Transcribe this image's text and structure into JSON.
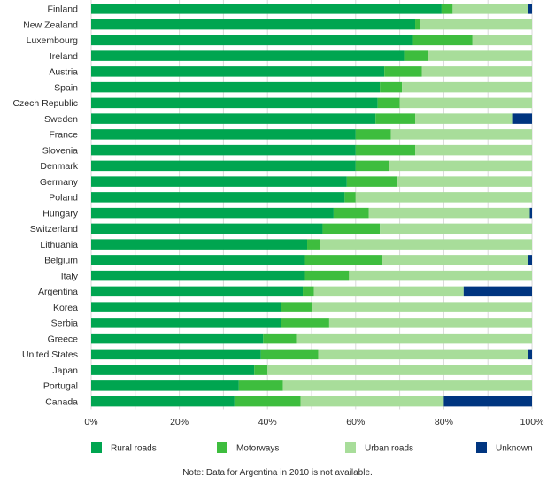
{
  "chart_data": {
    "type": "bar",
    "orientation": "horizontal",
    "stacked": true,
    "categories": [
      "Finland",
      "New Zealand",
      "Luxembourg",
      "Ireland",
      "Austria",
      "Spain",
      "Czech Republic",
      "Sweden",
      "France",
      "Slovenia",
      "Denmark",
      "Germany",
      "Poland",
      "Hungary",
      "Switzerland",
      "Lithuania",
      "Belgium",
      "Italy",
      "Argentina",
      "Korea",
      "Serbia",
      "Greece",
      "United States",
      "Japan",
      "Portugal",
      "Canada"
    ],
    "series": [
      {
        "name": "Rural roads",
        "color": "#00a550",
        "values": [
          79.5,
          73.5,
          73,
          71,
          66.5,
          65.5,
          65,
          64.5,
          60,
          60,
          60,
          58,
          57.5,
          55,
          52.5,
          49,
          48.5,
          48.5,
          48,
          43,
          43,
          39,
          38.5,
          37,
          33.5,
          32.5
        ]
      },
      {
        "name": "Motorways",
        "color": "#3ebd3e",
        "values": [
          2.5,
          1,
          13.5,
          5.5,
          8.5,
          5,
          5,
          9,
          8,
          13.5,
          7.5,
          11.5,
          2.5,
          8,
          13,
          3,
          17.5,
          10,
          2.5,
          7,
          11,
          7.5,
          13,
          3,
          10,
          15
        ]
      },
      {
        "name": "Urban roads",
        "color": "#a8dd9a",
        "values": [
          17,
          25.5,
          13.5,
          23.5,
          25,
          29.5,
          30,
          22,
          32,
          26.5,
          32.5,
          30.5,
          40,
          36.5,
          34.5,
          48,
          33,
          41.5,
          34,
          50,
          46,
          53.5,
          47.5,
          60,
          56.5,
          32.5
        ]
      },
      {
        "name": "Unknown",
        "color": "#003580",
        "values": [
          1,
          0,
          0,
          0,
          0,
          0,
          0,
          4.5,
          0,
          0,
          0,
          0,
          0,
          0.5,
          0,
          0,
          1,
          0,
          15.5,
          0,
          0,
          0,
          1,
          0,
          0,
          20
        ]
      }
    ],
    "x_ticks": [
      "0%",
      "20%",
      "40%",
      "60%",
      "80%",
      "100%"
    ],
    "xlim": [
      0,
      100
    ],
    "grid": "vertical",
    "legend": "bottom"
  },
  "note": "Note: Data for Argentina in 2010 is not available."
}
